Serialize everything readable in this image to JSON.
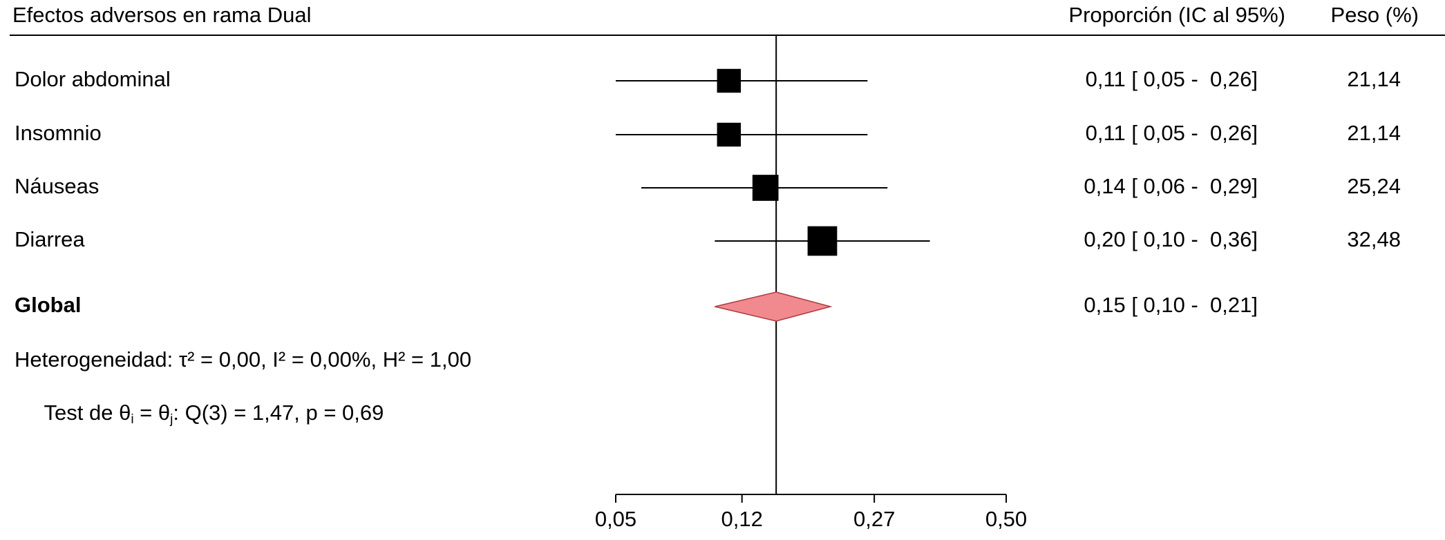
{
  "chart_data": {
    "type": "forest",
    "title": "Efectos adversos en rama Dual",
    "col_headers": [
      "Proporción (IC al 95%)",
      "Peso (%)"
    ],
    "categories": [
      "Dolor abdominal",
      "Insomnio",
      "Náuseas",
      "Diarrea"
    ],
    "values": [
      0.11,
      0.11,
      0.14,
      0.2
    ],
    "ci_low": [
      0.05,
      0.05,
      0.06,
      0.1
    ],
    "ci_high": [
      0.26,
      0.26,
      0.29,
      0.36
    ],
    "value_labels": [
      "0,11 [ 0,05 -  0,26]",
      "0,11 [ 0,05 -  0,26]",
      "0,14 [ 0,06 -  0,29]",
      "0,20 [ 0,10 -  0,36]"
    ],
    "weights": [
      21.14,
      21.14,
      25.24,
      32.48
    ],
    "weight_labels": [
      "21,14",
      "21,14",
      "25,24",
      "32,48"
    ],
    "color": "#000000",
    "overall": {
      "label": "Global",
      "value": 0.15,
      "ci_low": 0.1,
      "ci_high": 0.21,
      "value_label": "0,15 [ 0,10 -  0,21]",
      "color": "#f08a8e"
    },
    "heterogeneity": "Heterogeneidad: τ² = 0,00, I² = 0,00%, H² = 1,00",
    "test": [
      "Test de θ",
      "i",
      " = θ",
      "j",
      ": Q(3) = 1,47, p = 0,69"
    ],
    "xscale": "logit",
    "xlim": [
      0.05,
      0.5
    ],
    "xticks": [
      {
        "value": 0.05,
        "label": "0,05"
      },
      {
        "value": 0.12,
        "label": "0,12"
      },
      {
        "value": 0.27,
        "label": "0,27"
      },
      {
        "value": 0.5,
        "label": "0,50"
      }
    ]
  }
}
